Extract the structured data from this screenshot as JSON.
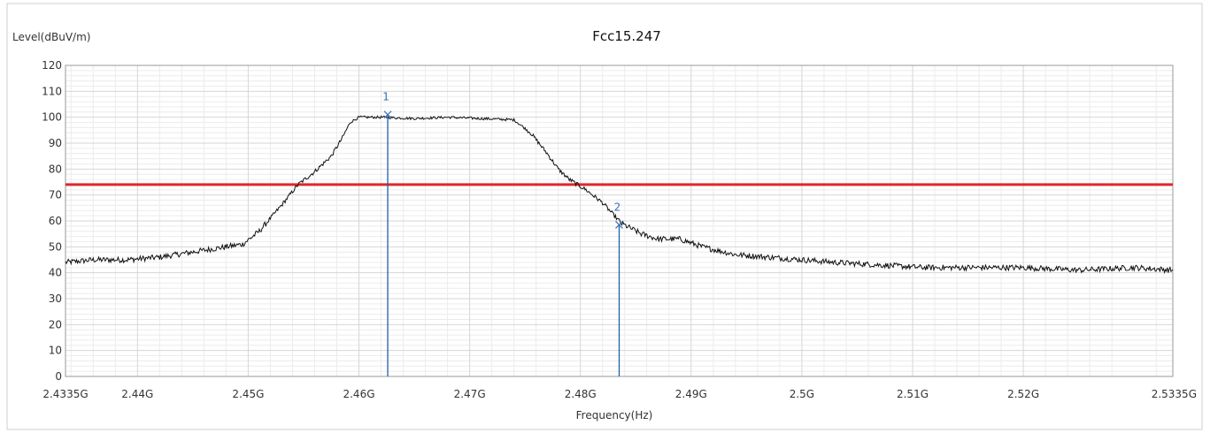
{
  "chart_data": {
    "type": "line",
    "title": "Fcc15.247",
    "ylabel": "Level(dBuV/m)",
    "xlabel": "Frequency(Hz)",
    "xlim": [
      2.4335,
      2.5335
    ],
    "ylim": [
      0,
      120
    ],
    "y_ticks": [
      0,
      10,
      20,
      30,
      40,
      50,
      60,
      70,
      80,
      90,
      100,
      110,
      120
    ],
    "x_ticks": [
      {
        "value": 2.4335,
        "label": "2.4335G"
      },
      {
        "value": 2.44,
        "label": "2.44G"
      },
      {
        "value": 2.45,
        "label": "2.45G"
      },
      {
        "value": 2.46,
        "label": "2.46G"
      },
      {
        "value": 2.47,
        "label": "2.47G"
      },
      {
        "value": 2.48,
        "label": "2.48G"
      },
      {
        "value": 2.49,
        "label": "2.49G"
      },
      {
        "value": 2.5,
        "label": "2.5G"
      },
      {
        "value": 2.51,
        "label": "2.51G"
      },
      {
        "value": 2.52,
        "label": "2.52G"
      },
      {
        "value": 2.5335,
        "label": "2.5335G"
      }
    ],
    "grid": true,
    "limit_line": {
      "value": 74,
      "color": "#e0262b"
    },
    "series": [
      {
        "color": "#111111",
        "x": [
          2.4335,
          2.436,
          2.439,
          2.442,
          2.445,
          2.448,
          2.4495,
          2.451,
          2.453,
          2.4545,
          2.456,
          2.4575,
          2.4585,
          2.4592,
          2.46,
          2.462,
          2.465,
          2.468,
          2.471,
          2.474,
          2.4755,
          2.477,
          2.478,
          2.479,
          2.4805,
          2.482,
          2.4837,
          2.4855,
          2.487,
          2.489,
          2.491,
          2.494,
          2.497,
          2.5,
          2.503,
          2.507,
          2.511,
          2.515,
          2.52,
          2.525,
          2.53,
          2.5335
        ],
        "y": [
          44,
          45,
          45,
          46,
          48,
          50,
          51,
          56,
          66,
          74,
          79,
          85,
          92,
          98,
          100,
          100,
          99.5,
          100,
          99.5,
          99,
          94,
          86,
          80,
          76,
          72,
          67,
          59,
          55,
          53,
          53,
          50,
          47,
          46,
          45,
          44,
          43,
          42,
          42,
          42,
          41,
          42,
          41
        ]
      }
    ],
    "markers": [
      {
        "label": "1",
        "x": 2.4626,
        "y": 101
      },
      {
        "label": "2",
        "x": 2.4835,
        "y": 58.5
      }
    ]
  }
}
